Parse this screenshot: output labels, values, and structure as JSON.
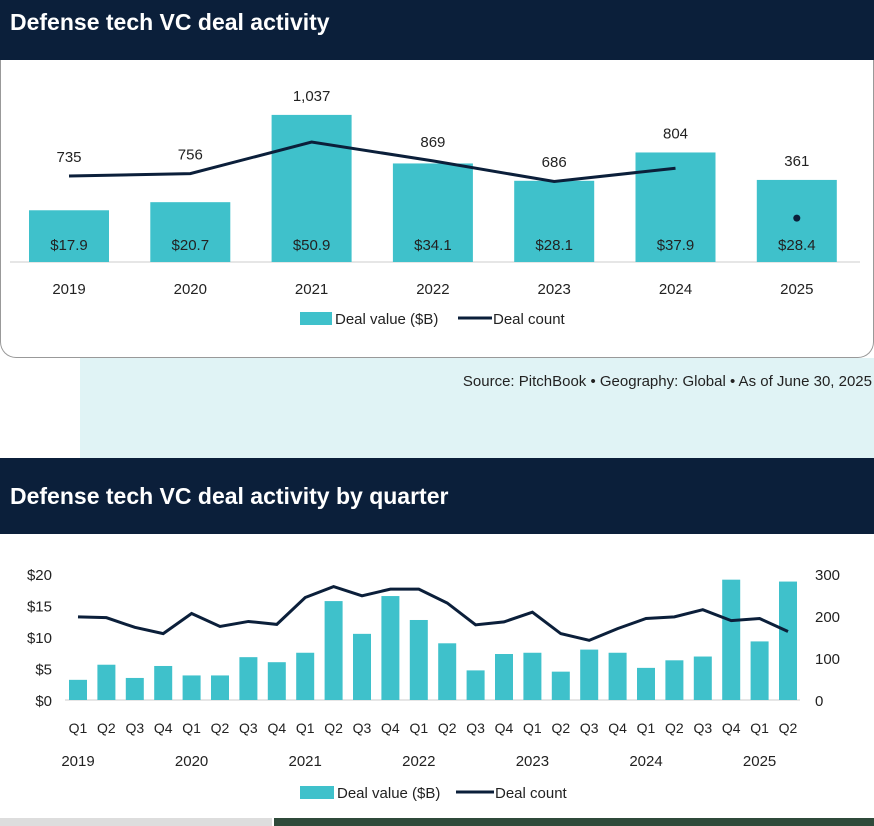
{
  "chart_data": [
    {
      "type": "bar+line",
      "title": "Defense tech VC deal activity",
      "categories": [
        "2019",
        "2020",
        "2021",
        "2022",
        "2023",
        "2024",
        "2025"
      ],
      "series": [
        {
          "name": "Deal value ($B)",
          "type": "bar",
          "values": [
            17.9,
            20.7,
            50.9,
            34.1,
            28.1,
            37.9,
            28.4
          ],
          "labels": [
            "$17.9",
            "$20.7",
            "$50.9",
            "$34.1",
            "$28.1",
            "$37.9",
            "$28.4"
          ]
        },
        {
          "name": "Deal count",
          "type": "line",
          "values": [
            735,
            756,
            1037,
            869,
            686,
            804,
            361
          ],
          "labels": [
            "735",
            "756",
            "1,037",
            "869",
            "686",
            "804",
            "361"
          ]
        }
      ],
      "legend": "bottom"
    },
    {
      "type": "bar+line",
      "title": "Defense tech VC deal activity by quarter",
      "categories": [
        "Q1",
        "Q2",
        "Q3",
        "Q4",
        "Q1",
        "Q2",
        "Q3",
        "Q4",
        "Q1",
        "Q2",
        "Q3",
        "Q4",
        "Q1",
        "Q2",
        "Q3",
        "Q4",
        "Q1",
        "Q2",
        "Q3",
        "Q4",
        "Q1",
        "Q2",
        "Q3",
        "Q4",
        "Q1",
        "Q2"
      ],
      "years": [
        "2019",
        "2020",
        "2021",
        "2022",
        "2023",
        "2024",
        "2025"
      ],
      "series": [
        {
          "name": "Deal value ($B)",
          "type": "bar",
          "axis": "left",
          "values": [
            3.2,
            5.6,
            3.5,
            5.4,
            3.9,
            3.9,
            6.8,
            6.0,
            7.5,
            15.7,
            10.5,
            16.5,
            12.7,
            9.0,
            4.7,
            7.3,
            7.5,
            4.5,
            8.0,
            7.5,
            5.1,
            6.3,
            6.9,
            19.1,
            9.3,
            18.8
          ]
        },
        {
          "name": "Deal count",
          "type": "line",
          "axis": "right",
          "values": [
            198,
            196,
            173,
            158,
            206,
            175,
            187,
            180,
            244,
            270,
            248,
            264,
            264,
            231,
            179,
            186,
            209,
            158,
            142,
            170,
            194,
            198,
            215,
            189,
            194,
            163
          ]
        }
      ],
      "left_ticks": [
        "$0",
        "$5",
        "$10",
        "$15",
        "$20"
      ],
      "ylim": [
        0,
        20
      ],
      "right_ticks": [
        "0",
        "100",
        "200",
        "300"
      ],
      "y2lim": [
        0,
        300
      ],
      "legend": "bottom"
    }
  ],
  "source": "Source: PitchBook  •  Geography: Global  •  As of June 30, 2025",
  "colors": {
    "bar": "#3fc1cb",
    "line": "#0b1f3a",
    "header": "#0b1f3a"
  }
}
